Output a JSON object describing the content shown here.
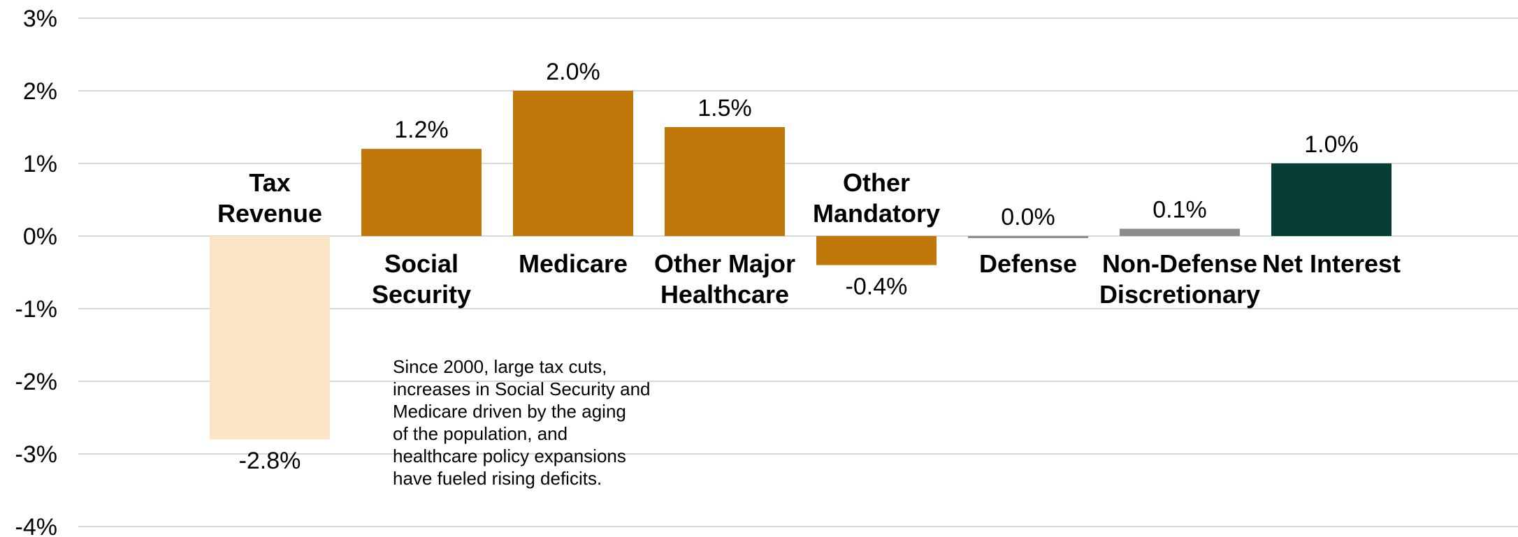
{
  "chart_data": {
    "type": "bar",
    "title": "",
    "xlabel": "",
    "ylabel": "",
    "ylim": [
      -4,
      3
    ],
    "yticks": [
      "3%",
      "2%",
      "1%",
      "0%",
      "-1%",
      "-2%",
      "-3%",
      "-4%"
    ],
    "grid": true,
    "categories": [
      {
        "label": [
          "Tax",
          "Revenue"
        ],
        "value": -2.8,
        "value_label": "-2.8%",
        "color": "#FBE5C5",
        "label_position": "above"
      },
      {
        "label": [
          "Social",
          "Security"
        ],
        "value": 1.2,
        "value_label": "1.2%",
        "color": "#C0780A",
        "label_position": "below"
      },
      {
        "label": [
          "Medicare"
        ],
        "value": 2.0,
        "value_label": "2.0%",
        "color": "#C0780A",
        "label_position": "below"
      },
      {
        "label": [
          "Other Major",
          "Healthcare"
        ],
        "value": 1.5,
        "value_label": "1.5%",
        "color": "#C0780A",
        "label_position": "below"
      },
      {
        "label": [
          "Other",
          "Mandatory"
        ],
        "value": -0.4,
        "value_label": "-0.4%",
        "color": "#C0780A",
        "label_position": "above"
      },
      {
        "label": [
          "Defense"
        ],
        "value": 0.0,
        "value_label": "0.0%",
        "color": "#8C8C8C",
        "label_position": "below"
      },
      {
        "label": [
          "Non-Defense",
          "Discretionary"
        ],
        "value": 0.1,
        "value_label": "0.1%",
        "color": "#8C8C8C",
        "label_position": "below"
      },
      {
        "label": [
          "Net Interest"
        ],
        "value": 1.0,
        "value_label": "1.0%",
        "color": "#063D32",
        "label_position": "below"
      }
    ],
    "annotation": [
      "Since 2000, large tax cuts,",
      "increases in Social Security and",
      "Medicare driven by the aging",
      "of the population, and",
      "healthcare policy expansions",
      "have fueled rising deficits."
    ]
  }
}
